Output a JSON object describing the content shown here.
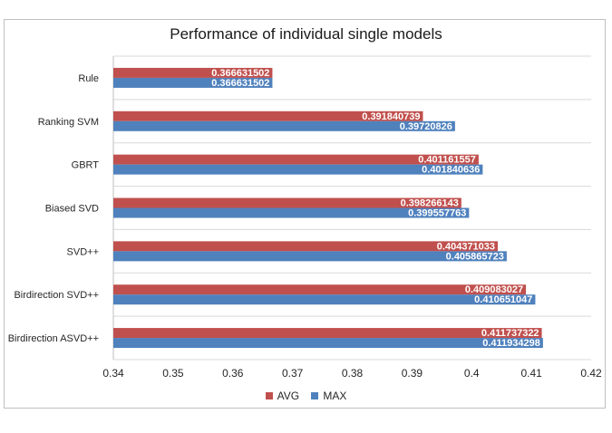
{
  "chart_data": {
    "type": "bar",
    "orientation": "horizontal",
    "title": "Performance of individual single models",
    "categories": [
      "Rule",
      "Ranking SVM",
      "GBRT",
      "Biased SVD",
      "SVD++",
      "Birdirection SVD++",
      "Birdirection ASVD++"
    ],
    "series": [
      {
        "name": "AVG",
        "color": "#c0504d",
        "values": [
          0.366631502,
          0.391840739,
          0.401161557,
          0.398266143,
          0.404371033,
          0.409083027,
          0.411737322
        ],
        "labels": [
          "0.366631502",
          "0.391840739",
          "0.401161557",
          "0.398266143",
          "0.404371033",
          "0.409083027",
          "0.411737322"
        ]
      },
      {
        "name": "MAX",
        "color": "#4f81bd",
        "values": [
          0.366631502,
          0.39720826,
          0.401840636,
          0.399557763,
          0.405865723,
          0.410651047,
          0.411934298
        ],
        "labels": [
          "0.366631502",
          "0.39720826",
          "0.401840636",
          "0.399557763",
          "0.405865723",
          "0.410651047",
          "0.411934298"
        ]
      }
    ],
    "xlim": [
      0.34,
      0.42
    ],
    "xticks": [
      "0.34",
      "0.35",
      "0.36",
      "0.37",
      "0.38",
      "0.39",
      "0.4",
      "0.41",
      "0.42"
    ],
    "xtick_values": [
      0.34,
      0.35,
      0.36,
      0.37,
      0.38,
      0.39,
      0.4,
      0.41,
      0.42
    ],
    "grid": "horizontal separators between categories",
    "legend_position": "bottom"
  }
}
